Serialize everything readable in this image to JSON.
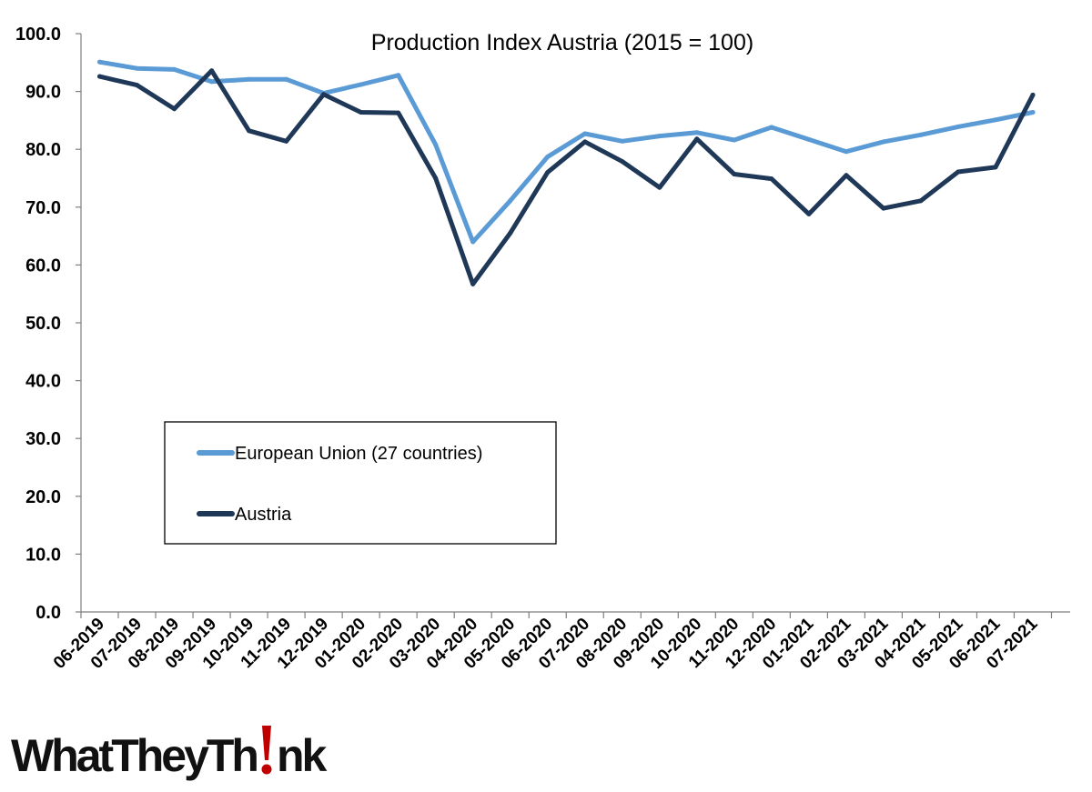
{
  "chart_data": {
    "type": "line",
    "title": "Production Index Austria (2015 = 100)",
    "xlabel": "",
    "ylabel": "",
    "ylim": [
      0,
      100
    ],
    "y_ticks": [
      "0.0",
      "10.0",
      "20.0",
      "30.0",
      "40.0",
      "50.0",
      "60.0",
      "70.0",
      "80.0",
      "90.0",
      "100.0"
    ],
    "grid": false,
    "legend_position": "left-middle",
    "categories": [
      "06-2019",
      "07-2019",
      "08-2019",
      "09-2019",
      "10-2019",
      "11-2019",
      "12-2019",
      "01-2020",
      "02-2020",
      "03-2020",
      "04-2020",
      "05-2020",
      "06-2020",
      "07-2020",
      "08-2020",
      "09-2020",
      "10-2020",
      "11-2020",
      "12-2020",
      "01-2021",
      "02-2021",
      "03-2021",
      "04-2021",
      "05-2021",
      "06-2021",
      "07-2021"
    ],
    "series": [
      {
        "name": "European Union (27 countries)",
        "color": "#5b9bd5",
        "values": [
          95.1,
          94.0,
          93.8,
          91.7,
          92.1,
          92.1,
          89.7,
          91.2,
          92.8,
          80.8,
          64.0,
          71.1,
          78.7,
          82.7,
          81.4,
          82.3,
          82.9,
          81.6,
          83.8,
          81.7,
          79.6,
          81.3,
          82.5,
          83.9,
          85.1,
          86.4
        ]
      },
      {
        "name": "Austria",
        "color": "#1f3858",
        "values": [
          92.6,
          91.1,
          87.0,
          93.6,
          83.2,
          81.4,
          89.5,
          86.4,
          86.3,
          75.0,
          56.7,
          65.5,
          76.0,
          81.3,
          77.9,
          73.4,
          81.8,
          75.7,
          74.9,
          68.8,
          75.5,
          69.8,
          71.1,
          76.1,
          76.9,
          89.4
        ]
      }
    ]
  },
  "branding": {
    "logo_text_before": "WhatTheyTh",
    "logo_text_after": "nk",
    "logo_accent_color": "#c00000"
  }
}
